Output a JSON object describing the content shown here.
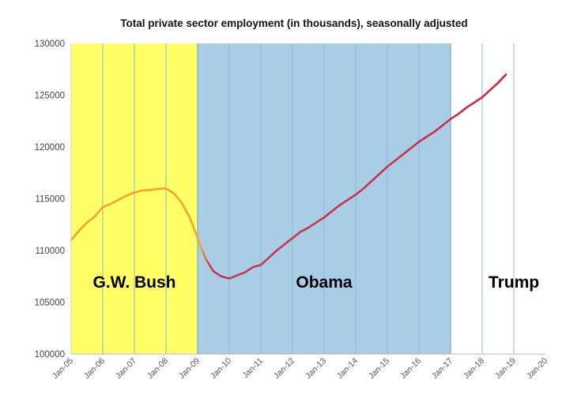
{
  "chart_data": {
    "type": "line",
    "title": "Total private sector employment (in thousands), seasonally adjusted",
    "xlabel": "",
    "ylabel": "",
    "xlim": [
      2005.0,
      2020.0
    ],
    "ylim": [
      100000,
      130000
    ],
    "y_ticks": [
      "100000",
      "105000",
      "110000",
      "115000",
      "120000",
      "125000",
      "130000"
    ],
    "x_ticks": [
      "Jan-05",
      "Jan-06",
      "Jan-07",
      "Jan-08",
      "Jan-09",
      "Jan-10",
      "Jan-11",
      "Jan-12",
      "Jan-13",
      "Jan-14",
      "Jan-15",
      "Jan-16",
      "Jan-17",
      "Jan-18",
      "Jan-19",
      "Jan-20"
    ],
    "grid": "vertical",
    "regions": [
      {
        "label": "G.W. Bush",
        "start": 2005.0,
        "end": 2009.0,
        "color": "#ffff66"
      },
      {
        "label": "Obama",
        "start": 2009.0,
        "end": 2017.0,
        "color": "#a9cde5"
      },
      {
        "label": "Trump",
        "start": 2017.0,
        "end": 2020.0,
        "color": "#ffffff"
      }
    ],
    "series": [
      {
        "color": "#e0221f",
        "x": [
          2005.0,
          2005.25,
          2005.5,
          2005.75,
          2006.0,
          2006.25,
          2006.5,
          2006.75,
          2007.0,
          2007.25,
          2007.5,
          2007.75,
          2008.0,
          2008.25,
          2008.5,
          2008.75,
          2009.0,
          2009.25,
          2009.5,
          2009.75,
          2010.0,
          2010.25,
          2010.5,
          2010.75,
          2011.0,
          2011.25,
          2011.5,
          2011.75,
          2012.0,
          2012.25,
          2012.5,
          2012.75,
          2013.0,
          2013.25,
          2013.5,
          2013.75,
          2014.0,
          2014.25,
          2014.5,
          2014.75,
          2015.0,
          2015.25,
          2015.5,
          2015.75,
          2016.0,
          2016.25,
          2016.5,
          2016.75,
          2017.0,
          2017.25,
          2017.5,
          2017.75,
          2018.0,
          2018.25,
          2018.5,
          2018.75
        ],
        "y": [
          111000,
          111900,
          112700,
          113300,
          114200,
          114500,
          114900,
          115300,
          115600,
          115800,
          115850,
          115950,
          116000,
          115500,
          114600,
          113200,
          111200,
          109200,
          108000,
          107500,
          107300,
          107600,
          107900,
          108400,
          108600,
          109300,
          110000,
          110600,
          111200,
          111800,
          112200,
          112700,
          113200,
          113800,
          114400,
          114900,
          115400,
          116000,
          116700,
          117400,
          118100,
          118700,
          119300,
          119900,
          120500,
          121000,
          121500,
          122100,
          122700,
          123200,
          123800,
          124300,
          124800,
          125500,
          126200,
          127000
        ]
      }
    ]
  }
}
